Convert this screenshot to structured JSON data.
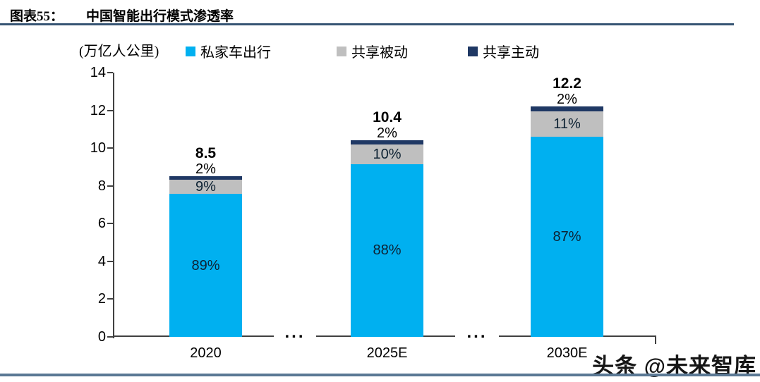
{
  "header": {
    "figure_label": "图表55：",
    "title": "中国智能出行模式渗透率"
  },
  "watermark": "头条 @未来智库",
  "chart_data": {
    "type": "bar",
    "stacked": true,
    "title": "中国智能出行模式渗透率",
    "unit_label": "(万亿人公里)",
    "categories": [
      "2020",
      "2025E",
      "2030E"
    ],
    "totals": [
      8.5,
      10.4,
      12.2
    ],
    "series": [
      {
        "name": "私家车出行",
        "color": "#00B0F0",
        "pct": [
          89,
          88,
          87
        ],
        "label_pos": "inside"
      },
      {
        "name": "共享被动",
        "color": "#BFBFBF",
        "pct": [
          9,
          10,
          11
        ],
        "label_pos": "inside"
      },
      {
        "name": "共享主动",
        "color": "#1F3864",
        "pct": [
          2,
          2,
          2
        ],
        "label_pos": "above"
      }
    ],
    "ylim": [
      0,
      14
    ],
    "yticks": [
      0,
      2,
      4,
      6,
      8,
      10,
      12,
      14
    ],
    "axis_gap_text": "...",
    "legend_position": "top",
    "grid": false,
    "colors": {
      "axis": "#404040",
      "title_rule": "#365473",
      "bottom_rule": "#5a7894"
    }
  }
}
